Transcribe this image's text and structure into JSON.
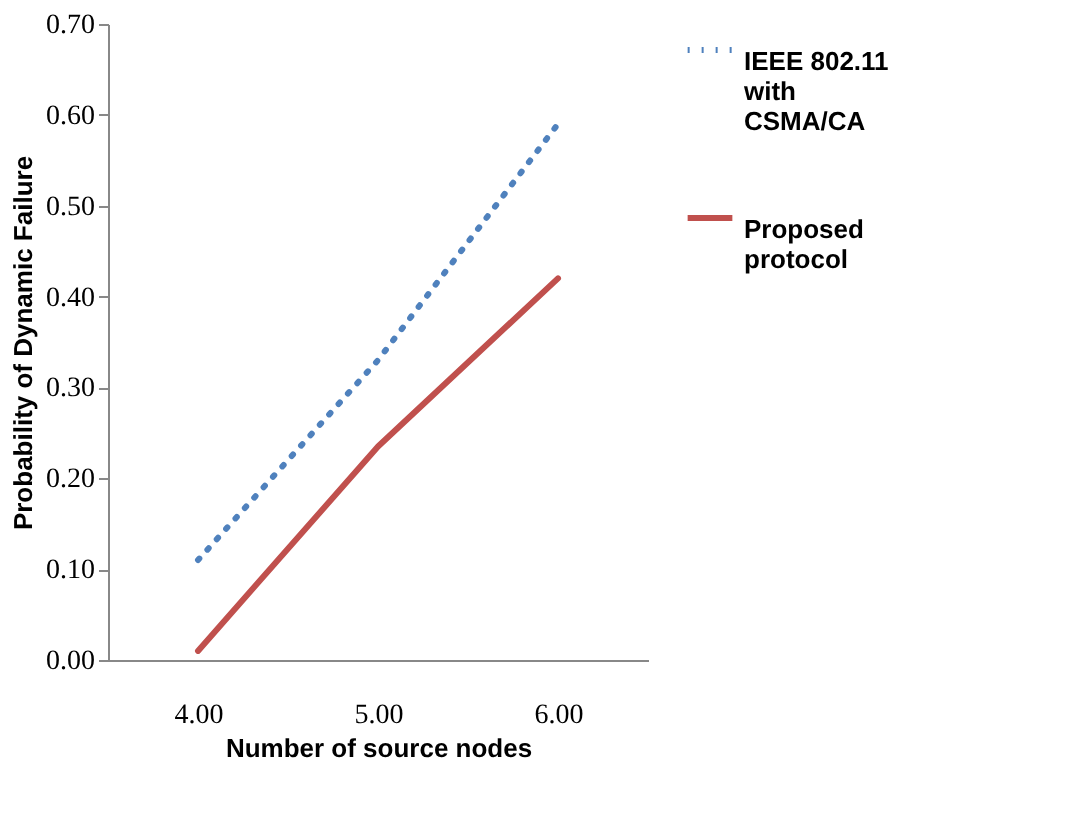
{
  "chart_data": {
    "type": "line",
    "xlabel": "Number of source nodes",
    "ylabel": "Probability of Dynamic Failure",
    "categories": [
      "4.00",
      "5.00",
      "6.00"
    ],
    "series": [
      {
        "name": "IEEE 802.11 with CSMA/CA",
        "color": "#4f81bd",
        "line_style": "dotted",
        "values": [
          0.11,
          0.33,
          0.59
        ]
      },
      {
        "name": "Proposed protocol",
        "color": "#c0504d",
        "line_style": "solid",
        "values": [
          0.01,
          0.235,
          0.42
        ]
      }
    ],
    "ylim": [
      0,
      0.7
    ],
    "yticks": [
      {
        "value": 0,
        "label": "0.00"
      },
      {
        "value": 0.1,
        "label": "0.10"
      },
      {
        "value": 0.2,
        "label": "0.20"
      },
      {
        "value": 0.3,
        "label": "0.30"
      },
      {
        "value": 0.4,
        "label": "0.40"
      },
      {
        "value": 0.5,
        "label": "0.50"
      },
      {
        "value": 0.6,
        "label": "0.60"
      },
      {
        "value": 0.7,
        "label": "0.70"
      }
    ],
    "grid": false,
    "legend": "right",
    "marker": "none"
  }
}
